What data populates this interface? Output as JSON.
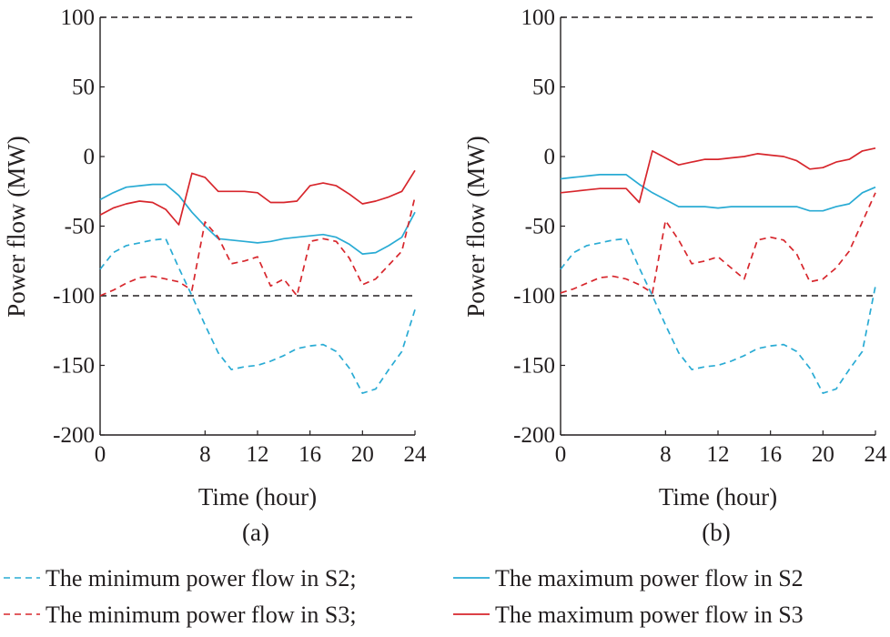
{
  "chart_data": [
    {
      "type": "line",
      "panel_label": "(a)",
      "xlabel": "Time (hour)",
      "ylabel": "Power flow (MW)",
      "xlim": [
        0,
        24
      ],
      "ylim": [
        -200,
        100
      ],
      "xticks": [
        "0",
        "8",
        "12",
        "16",
        "20",
        "24"
      ],
      "xtick_values": [
        0,
        8,
        12,
        16,
        20,
        24
      ],
      "yticks": [
        "100",
        "50",
        "0",
        "-50",
        "-100",
        "-150",
        "-200"
      ],
      "ytick_values": [
        100,
        50,
        0,
        -50,
        -100,
        -150,
        -200
      ],
      "reference_lines": [
        100,
        -100
      ],
      "grid": false,
      "x": [
        0,
        1,
        2,
        3,
        4,
        5,
        6,
        7,
        8,
        9,
        10,
        11,
        12,
        13,
        14,
        15,
        16,
        17,
        18,
        19,
        20,
        21,
        22,
        23,
        24
      ],
      "series": [
        {
          "key": "min_s2",
          "color": "#29abd4",
          "dashed": true,
          "values": [
            -81,
            -69,
            -64,
            -62,
            -60,
            -59,
            -80,
            -100,
            -121,
            -141,
            -153,
            -151,
            -150,
            -147,
            -143,
            -138,
            -136,
            -135,
            -140,
            -152,
            -170,
            -167,
            -153,
            -140,
            -110
          ]
        },
        {
          "key": "max_s2",
          "color": "#29abd4",
          "dashed": false,
          "values": [
            -31,
            -26,
            -22,
            -21,
            -20,
            -20,
            -28,
            -40,
            -50,
            -59,
            -60,
            -61,
            -62,
            -61,
            -59,
            -58,
            -57,
            -56,
            -58,
            -63,
            -70,
            -69,
            -64,
            -58,
            -40
          ]
        },
        {
          "key": "min_s3",
          "color": "#d7262c",
          "dashed": true,
          "values": [
            -100,
            -96,
            -91,
            -87,
            -86,
            -88,
            -90,
            -96,
            -47,
            -58,
            -77,
            -75,
            -72,
            -93,
            -88,
            -100,
            -61,
            -59,
            -61,
            -73,
            -92,
            -88,
            -78,
            -68,
            -29
          ]
        },
        {
          "key": "max_s3",
          "color": "#d7262c",
          "dashed": false,
          "values": [
            -42,
            -37,
            -34,
            -32,
            -33,
            -38,
            -49,
            -12,
            -15,
            -25,
            -25,
            -25,
            -26,
            -33,
            -33,
            -32,
            -21,
            -19,
            -21,
            -27,
            -34,
            -32,
            -29,
            -25,
            -10
          ]
        }
      ]
    },
    {
      "type": "line",
      "panel_label": "(b)",
      "xlabel": "Time (hour)",
      "ylabel": "Power flow (MW)",
      "xlim": [
        0,
        24
      ],
      "ylim": [
        -200,
        100
      ],
      "xticks": [
        "0",
        "8",
        "12",
        "16",
        "20",
        "24"
      ],
      "xtick_values": [
        0,
        8,
        12,
        16,
        20,
        24
      ],
      "yticks": [
        "100",
        "50",
        "0",
        "-50",
        "-100",
        "-150",
        "-200"
      ],
      "ytick_values": [
        100,
        50,
        0,
        -50,
        -100,
        -150,
        -200
      ],
      "reference_lines": [
        100,
        -100
      ],
      "grid": false,
      "x": [
        0,
        1,
        2,
        3,
        4,
        5,
        6,
        7,
        8,
        9,
        10,
        11,
        12,
        13,
        14,
        15,
        16,
        17,
        18,
        19,
        20,
        21,
        22,
        23,
        24
      ],
      "series": [
        {
          "key": "min_s2",
          "color": "#29abd4",
          "dashed": true,
          "values": [
            -81,
            -69,
            -64,
            -62,
            -60,
            -59,
            -80,
            -100,
            -121,
            -141,
            -153,
            -151,
            -150,
            -147,
            -143,
            -138,
            -136,
            -135,
            -140,
            -152,
            -170,
            -167,
            -153,
            -140,
            -93
          ]
        },
        {
          "key": "max_s2",
          "color": "#29abd4",
          "dashed": false,
          "values": [
            -16,
            -15,
            -14,
            -13,
            -13,
            -13,
            -20,
            -26,
            -31,
            -36,
            -36,
            -36,
            -37,
            -36,
            -36,
            -36,
            -36,
            -36,
            -36,
            -39,
            -39,
            -36,
            -34,
            -26,
            -22
          ]
        },
        {
          "key": "min_s3",
          "color": "#d7262c",
          "dashed": true,
          "values": [
            -98,
            -95,
            -91,
            -87,
            -86,
            -88,
            -92,
            -98,
            -46,
            -60,
            -77,
            -75,
            -72,
            -80,
            -88,
            -60,
            -58,
            -60,
            -70,
            -90,
            -88,
            -80,
            -68,
            -47,
            -26
          ]
        },
        {
          "key": "max_s3",
          "color": "#d7262c",
          "dashed": false,
          "values": [
            -26,
            -25,
            -24,
            -23,
            -23,
            -23,
            -33,
            4,
            -1,
            -6,
            -4,
            -2,
            -2,
            -1,
            0,
            2,
            1,
            0,
            -3,
            -9,
            -8,
            -4,
            -2,
            4,
            6
          ]
        }
      ]
    }
  ],
  "legend": {
    "min_s2": "The minimum power flow in S2;",
    "max_s2": "The maximum power flow in S2",
    "min_s3": "The minimum power flow in S3;",
    "max_s3": "The maximum power flow in S3"
  }
}
